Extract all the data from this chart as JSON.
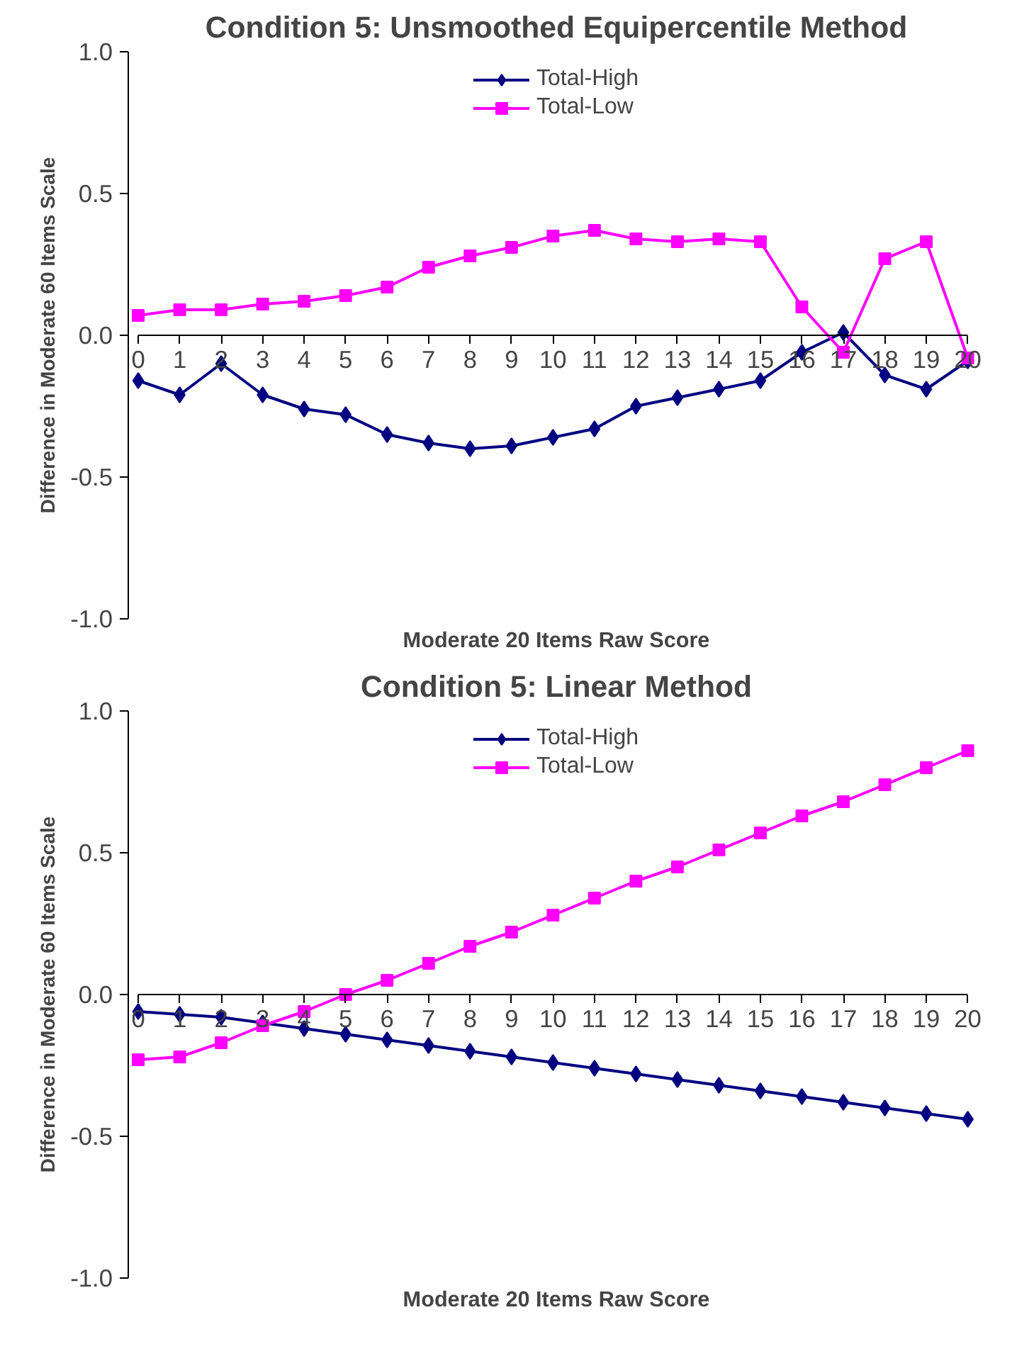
{
  "chart_data": [
    {
      "type": "line",
      "title": "Condition 5: Unsmoothed Equipercentile Method",
      "xlabel": "Moderate 20 Items Raw Score",
      "ylabel": "Difference in Moderate 60 Items Scale",
      "x": [
        0,
        1,
        2,
        3,
        4,
        5,
        6,
        7,
        8,
        9,
        10,
        11,
        12,
        13,
        14,
        15,
        16,
        17,
        18,
        19,
        20
      ],
      "xlim": [
        0,
        20
      ],
      "xticks": [
        0,
        1,
        2,
        3,
        4,
        5,
        6,
        7,
        8,
        9,
        10,
        11,
        12,
        13,
        14,
        15,
        16,
        17,
        18,
        19,
        20
      ],
      "ylim": [
        -1,
        1
      ],
      "yticks": [
        {
          "value": -1,
          "label": "-1.0"
        },
        {
          "value": -0.5,
          "label": "-0.5"
        },
        {
          "value": 0,
          "label": "0.0"
        },
        {
          "value": 0.5,
          "label": "0.5"
        },
        {
          "value": 1,
          "label": "1.0"
        }
      ],
      "grid": false,
      "legend": "top",
      "line_style": "solid",
      "series": [
        {
          "name": "Total-High",
          "color": "#000080",
          "marker": "diamond",
          "values": [
            -0.16,
            -0.21,
            -0.1,
            -0.21,
            -0.26,
            -0.28,
            -0.35,
            -0.38,
            -0.4,
            -0.39,
            -0.36,
            -0.33,
            -0.25,
            -0.22,
            -0.19,
            -0.16,
            -0.06,
            0.01,
            -0.14,
            -0.19,
            -0.09
          ]
        },
        {
          "name": "Total-Low",
          "color": "#ff00ff",
          "marker": "square",
          "values": [
            0.07,
            0.09,
            0.09,
            0.11,
            0.12,
            0.14,
            0.17,
            0.24,
            0.28,
            0.31,
            0.35,
            0.37,
            0.34,
            0.33,
            0.34,
            0.33,
            0.1,
            -0.06,
            0.27,
            0.33,
            -0.08
          ]
        }
      ]
    },
    {
      "type": "line",
      "title": "Condition 5: Linear Method",
      "xlabel": "Moderate 20 Items Raw Score",
      "ylabel": "Difference in Moderate 60 Items Scale",
      "x": [
        0,
        1,
        2,
        3,
        4,
        5,
        6,
        7,
        8,
        9,
        10,
        11,
        12,
        13,
        14,
        15,
        16,
        17,
        18,
        19,
        20
      ],
      "xlim": [
        0,
        20
      ],
      "xticks": [
        0,
        1,
        2,
        3,
        4,
        5,
        6,
        7,
        8,
        9,
        10,
        11,
        12,
        13,
        14,
        15,
        16,
        17,
        18,
        19,
        20
      ],
      "ylim": [
        -1,
        1
      ],
      "yticks": [
        {
          "value": -1,
          "label": "-1.0"
        },
        {
          "value": -0.5,
          "label": "-0.5"
        },
        {
          "value": 0,
          "label": "0.0"
        },
        {
          "value": 0.5,
          "label": "0.5"
        },
        {
          "value": 1,
          "label": "1.0"
        }
      ],
      "grid": false,
      "legend": "top",
      "line_style": "solid",
      "series": [
        {
          "name": "Total-High",
          "color": "#000080",
          "marker": "diamond",
          "values": [
            -0.06,
            -0.07,
            -0.08,
            -0.1,
            -0.12,
            -0.14,
            -0.16,
            -0.18,
            -0.2,
            -0.22,
            -0.24,
            -0.26,
            -0.28,
            -0.3,
            -0.32,
            -0.34,
            -0.36,
            -0.38,
            -0.4,
            -0.42,
            -0.44
          ]
        },
        {
          "name": "Total-Low",
          "color": "#ff00ff",
          "marker": "square",
          "values": [
            -0.23,
            -0.22,
            -0.17,
            -0.11,
            -0.06,
            0.0,
            0.05,
            0.11,
            0.17,
            0.22,
            0.28,
            0.34,
            0.4,
            0.45,
            0.51,
            0.57,
            0.63,
            0.68,
            0.74,
            0.8,
            0.86
          ]
        }
      ]
    }
  ]
}
